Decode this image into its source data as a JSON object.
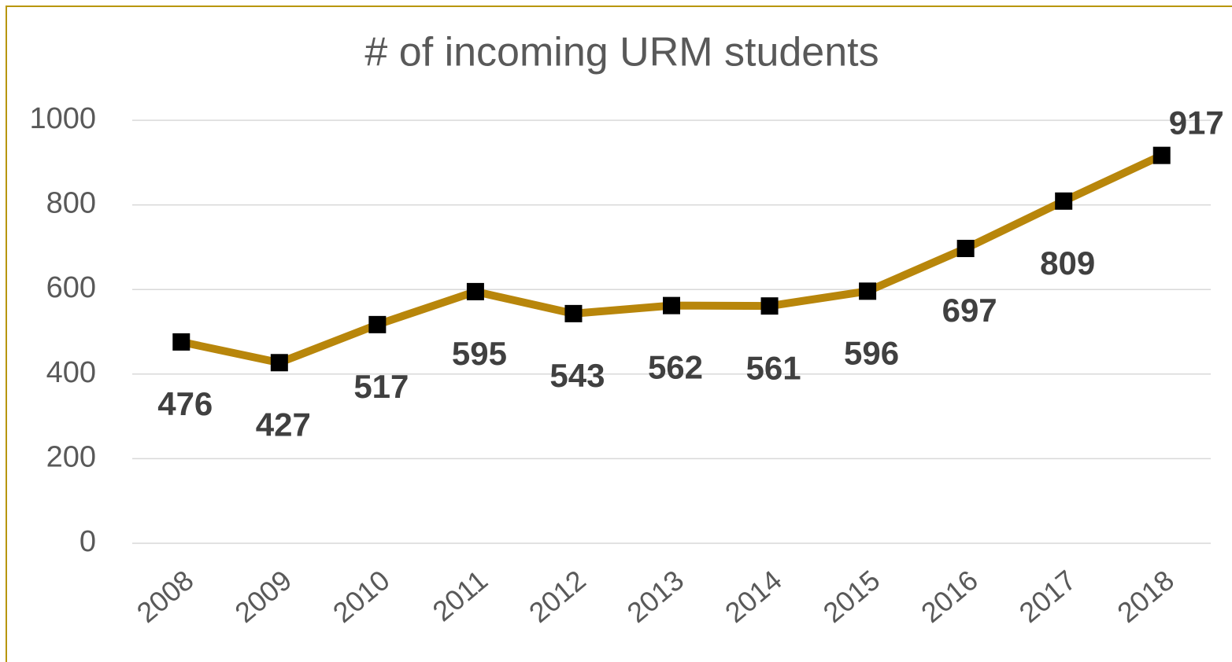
{
  "chart_data": {
    "type": "line",
    "title": "# of incoming URM students",
    "categories": [
      "2008",
      "2009",
      "2010",
      "2011",
      "2012",
      "2013",
      "2014",
      "2015",
      "2016",
      "2017",
      "2018"
    ],
    "series": [
      {
        "name": "# of incoming URM students",
        "color": "#b8860b",
        "values": [
          476,
          427,
          517,
          595,
          543,
          562,
          561,
          596,
          697,
          809,
          917
        ]
      }
    ],
    "ylim": [
      0,
      1000
    ],
    "yticks": [
      0,
      200,
      400,
      600,
      800,
      1000
    ],
    "grid": true
  }
}
